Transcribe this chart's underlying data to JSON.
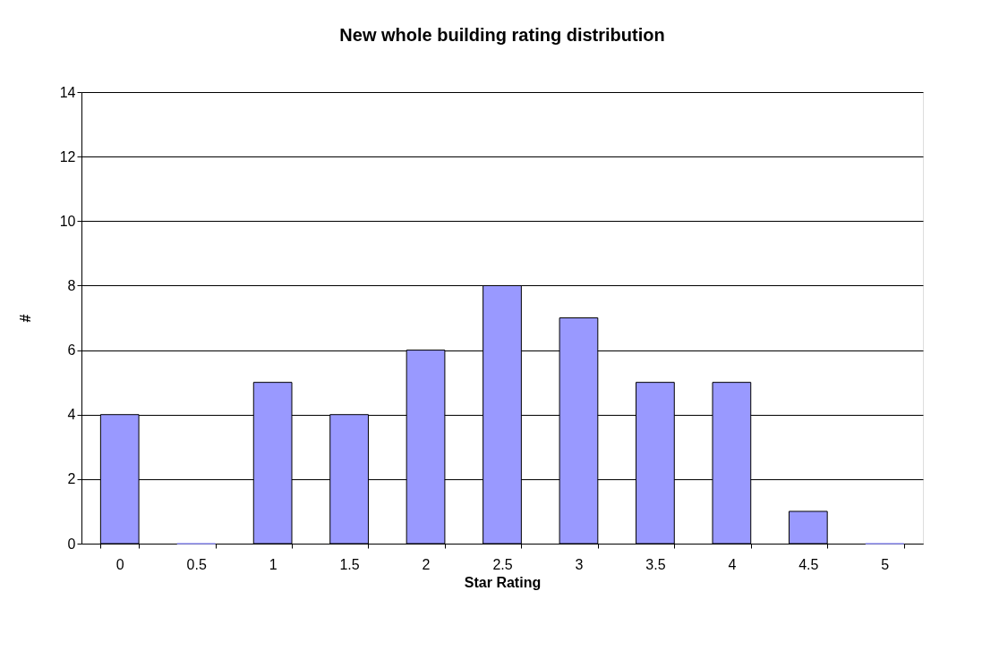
{
  "chart_data": {
    "type": "bar",
    "title": "New whole building rating distribution",
    "xlabel": "Star Rating",
    "ylabel": "#",
    "categories": [
      "0",
      "0.5",
      "1",
      "1.5",
      "2",
      "2.5",
      "3",
      "3.5",
      "4",
      "4.5",
      "5"
    ],
    "values": [
      4,
      0,
      5,
      4,
      6,
      8,
      7,
      5,
      5,
      1,
      0
    ],
    "color": "#9999ff",
    "ylim": [
      0,
      14
    ],
    "yticks": [
      0,
      2,
      4,
      6,
      8,
      10,
      12,
      14
    ],
    "grid": "y"
  }
}
